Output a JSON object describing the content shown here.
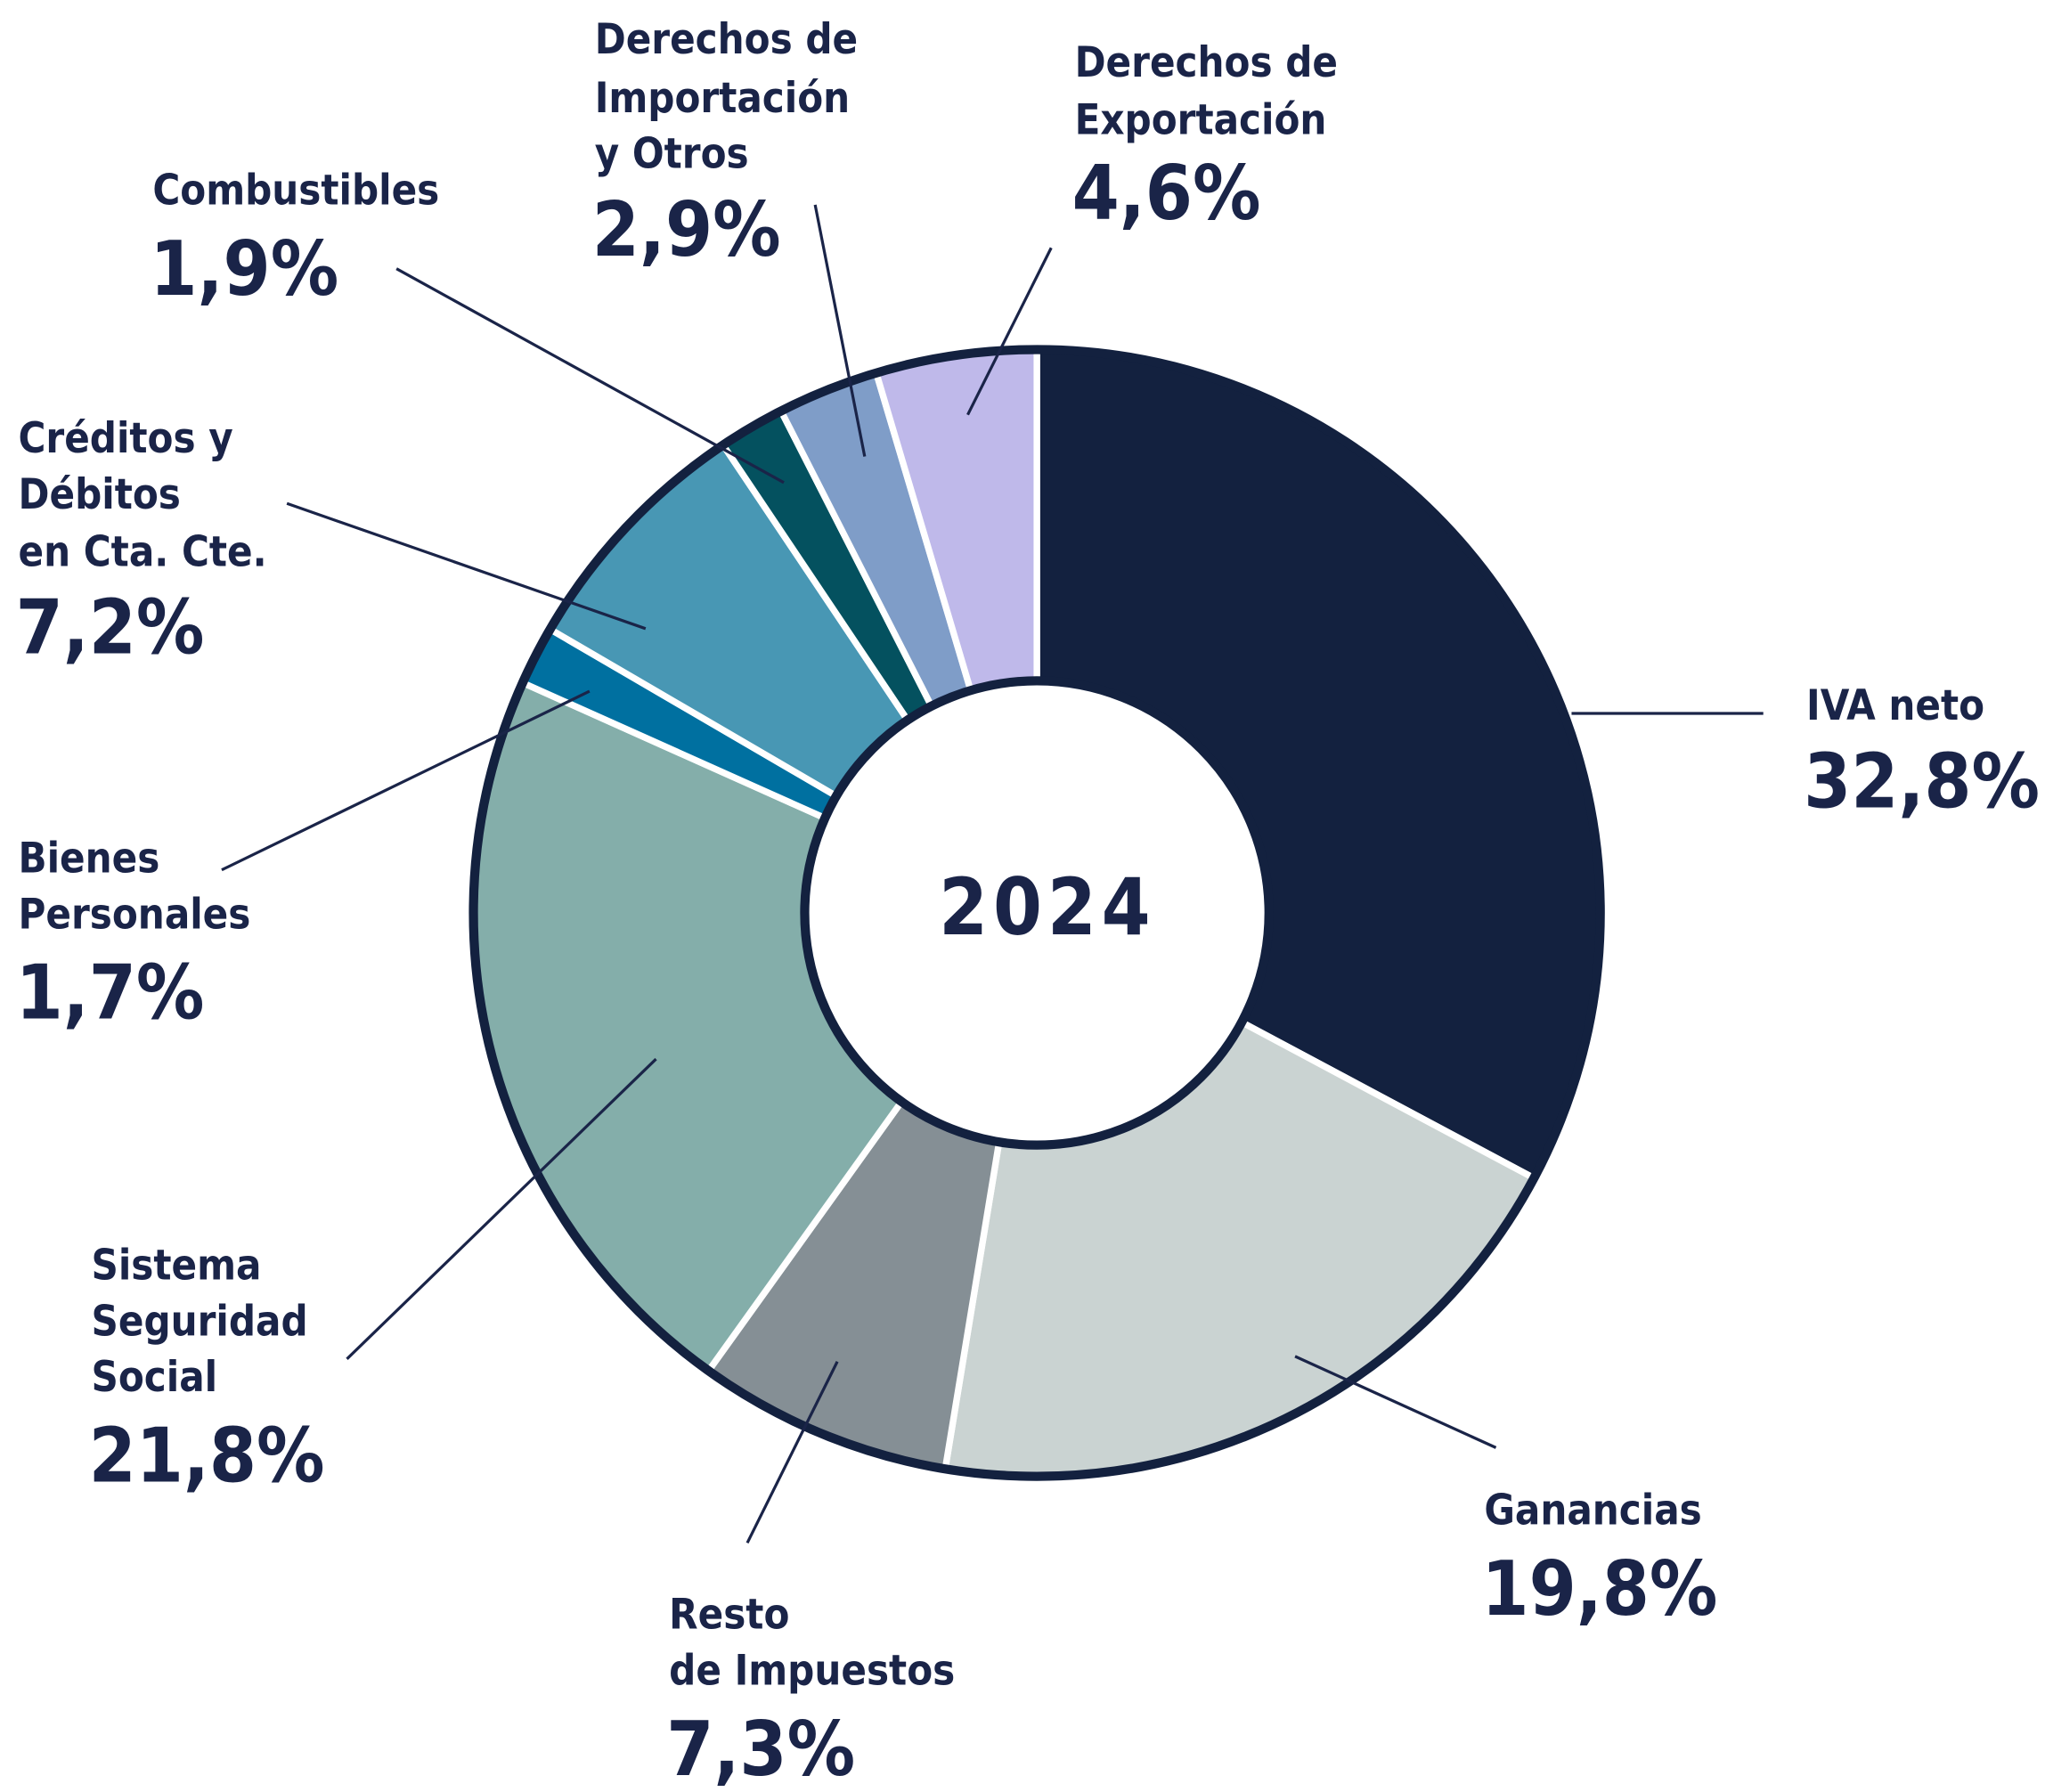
{
  "chart_data": {
    "type": "donut",
    "center_text": "2024",
    "categories": [
      "IVA neto",
      "Ganancias",
      "Resto\nde Impuestos",
      "Sistema\nSeguridad\nSocial",
      "Bienes\nPersonales",
      "Créditos y\nDébitos\nen Cta. Cte.",
      "Combustibles",
      "Derechos de\nImportación\ny Otros",
      "Derechos de\nExportación"
    ],
    "values": [
      32.8,
      19.8,
      7.3,
      21.8,
      1.7,
      7.2,
      1.9,
      2.9,
      4.6
    ],
    "value_labels": [
      "32,8%",
      "19,8%",
      "7,3%",
      "21,8%",
      "1,7%",
      "7,2%",
      "1,9%",
      "2,9%",
      "4,6%"
    ],
    "colors": [
      "#13213f",
      "#cad3d2",
      "#858f95",
      "#84aeaa",
      "#0070a0",
      "#4897b4",
      "#04515f",
      "#7f9dc8",
      "#bfb9ea"
    ]
  }
}
